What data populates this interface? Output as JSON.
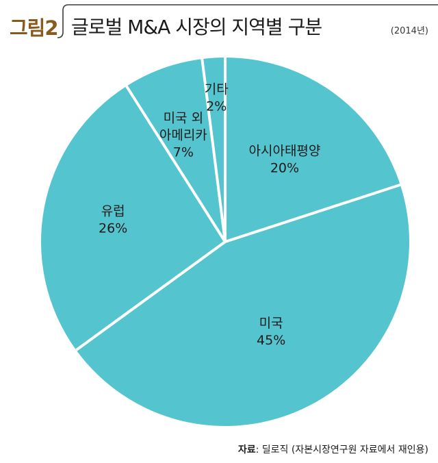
{
  "header": {
    "figure_label": "그림2",
    "title": "글로벌 M&A 시장의 지역별 구분",
    "year": "(2014년)"
  },
  "chart_data": {
    "type": "pie",
    "title": "글로벌 M&A 시장의 지역별 구분",
    "subtitle": "(2014년)",
    "legend": "none",
    "colors": {
      "slice": "#54c4ce",
      "divider": "#ffffff"
    },
    "slices": [
      {
        "label": "아시아태평양",
        "value": 20,
        "value_label": "20%"
      },
      {
        "label": "미국",
        "value": 45,
        "value_label": "45%"
      },
      {
        "label": "유럽",
        "value": 26,
        "value_label": "26%"
      },
      {
        "label": "미국 외 아메리카",
        "value": 7,
        "value_label": "7%",
        "label_lines": [
          "미국 외",
          "아메리카"
        ]
      },
      {
        "label": "기타",
        "value": 2,
        "value_label": "2%"
      }
    ]
  },
  "footer": {
    "source_key": "자료",
    "source_text": ": 딜로직 (자본시장연구원 자료에서 재인용)"
  }
}
